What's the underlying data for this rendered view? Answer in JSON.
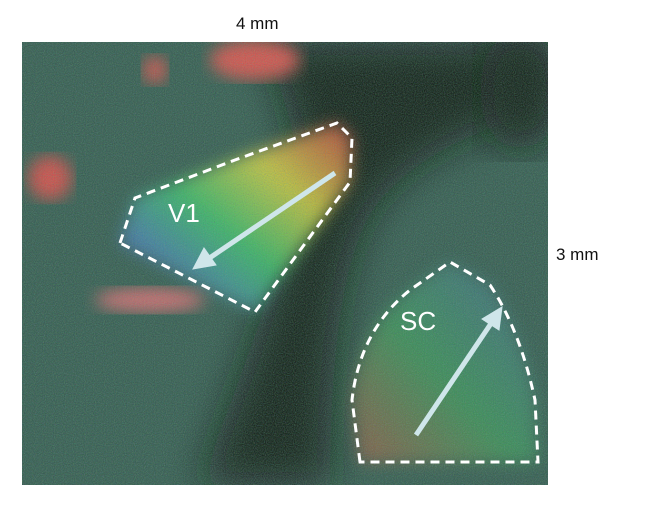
{
  "scale_bars": {
    "horizontal": "4 mm",
    "vertical": "3 mm"
  },
  "regions": [
    {
      "label": "V1",
      "outline": "white-dashed",
      "arrow": "white"
    },
    {
      "label": "SC",
      "outline": "white-dashed",
      "arrow": "white"
    }
  ],
  "colors": {
    "background": "#2a4a3e",
    "outline": "#ffffff",
    "arrow": "#cfe6ea"
  }
}
